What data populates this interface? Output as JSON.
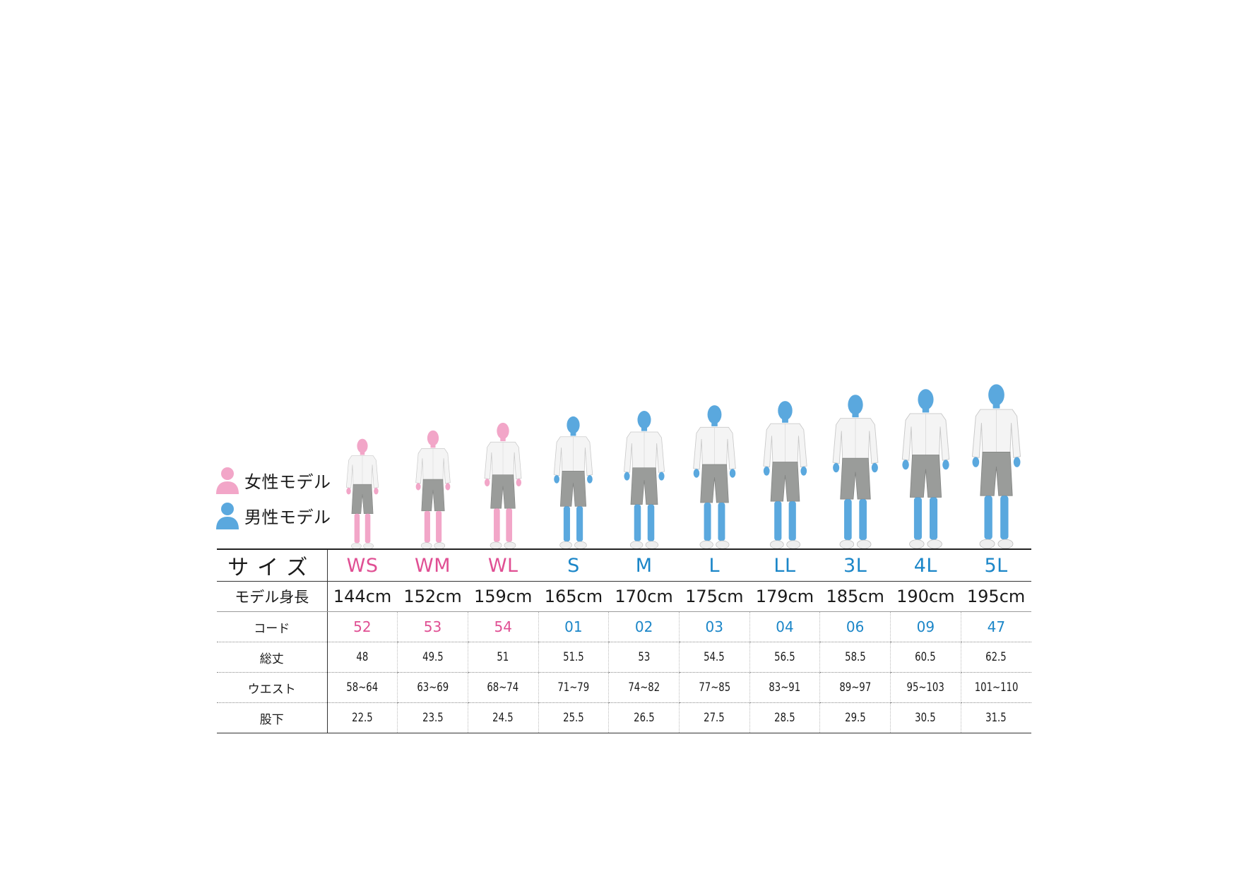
{
  "colors": {
    "female": "#e04f93",
    "male": "#1b86c8",
    "female_icon": "#f2a6c8",
    "male_icon": "#5aa8de"
  },
  "legend": {
    "female_label": "女性モデル",
    "male_label": "男性モデル",
    "female_icon": "female-person-icon",
    "male_icon": "male-person-icon"
  },
  "table": {
    "size_header": "サイズ",
    "height_header": "モデル身長",
    "code_header": "コード",
    "length_header": "総丈",
    "waist_header": "ウエスト",
    "inseam_header": "股下",
    "columns": [
      {
        "gender": "female",
        "size": "WS",
        "model_height": "144cm",
        "code": "52",
        "length": "48",
        "waist": "58~64",
        "inseam": "22.5"
      },
      {
        "gender": "female",
        "size": "WM",
        "model_height": "152cm",
        "code": "53",
        "length": "49.5",
        "waist": "63~69",
        "inseam": "23.5"
      },
      {
        "gender": "female",
        "size": "WL",
        "model_height": "159cm",
        "code": "54",
        "length": "51",
        "waist": "68~74",
        "inseam": "24.5"
      },
      {
        "gender": "male",
        "size": "S",
        "model_height": "165cm",
        "code": "01",
        "length": "51.5",
        "waist": "71~79",
        "inseam": "25.5"
      },
      {
        "gender": "male",
        "size": "M",
        "model_height": "170cm",
        "code": "02",
        "length": "53",
        "waist": "74~82",
        "inseam": "26.5"
      },
      {
        "gender": "male",
        "size": "L",
        "model_height": "175cm",
        "code": "03",
        "length": "54.5",
        "waist": "77~85",
        "inseam": "27.5"
      },
      {
        "gender": "male",
        "size": "LL",
        "model_height": "179cm",
        "code": "04",
        "length": "56.5",
        "waist": "83~91",
        "inseam": "28.5"
      },
      {
        "gender": "male",
        "size": "3L",
        "model_height": "185cm",
        "code": "06",
        "length": "58.5",
        "waist": "89~97",
        "inseam": "29.5"
      },
      {
        "gender": "male",
        "size": "4L",
        "model_height": "190cm",
        "code": "09",
        "length": "60.5",
        "waist": "95~103",
        "inseam": "30.5"
      },
      {
        "gender": "male",
        "size": "5L",
        "model_height": "195cm",
        "code": "47",
        "length": "62.5",
        "waist": "101~110",
        "inseam": "31.5"
      }
    ]
  }
}
